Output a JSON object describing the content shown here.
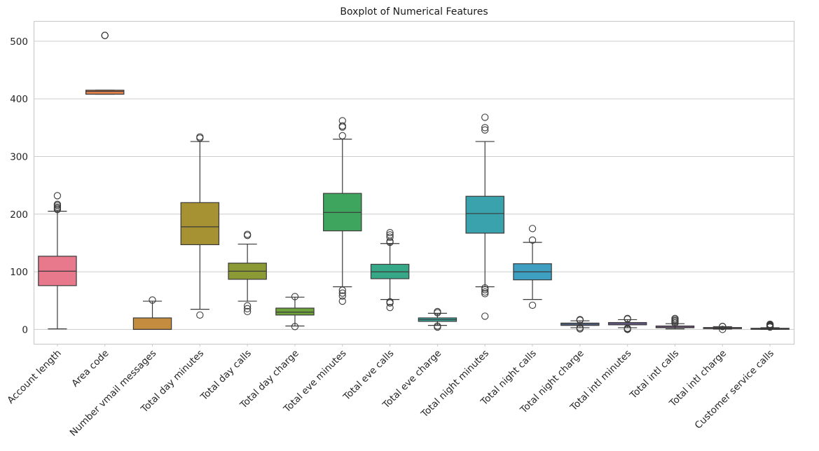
{
  "chart_data": {
    "type": "box",
    "title": "Boxplot of Numerical Features",
    "xlabel": "",
    "ylabel": "",
    "ylim": [
      -25,
      535
    ],
    "yticks": [
      0,
      100,
      200,
      300,
      400,
      500
    ],
    "grid": "horizontal",
    "categories": [
      "Account length",
      "Area code",
      "Number vmail messages",
      "Total day minutes",
      "Total day calls",
      "Total day charge",
      "Total eve minutes",
      "Total eve calls",
      "Total eve charge",
      "Total night minutes",
      "Total night calls",
      "Total night charge",
      "Total intl minutes",
      "Total intl calls",
      "Total intl charge",
      "Customer service calls"
    ],
    "colors": [
      "#e8788c",
      "#dd7f4b",
      "#c38c3e",
      "#a69233",
      "#8b9a35",
      "#6ea23b",
      "#3ea55e",
      "#37a887",
      "#37a59b",
      "#3aa2ad",
      "#3f9fc1",
      "#6c8fd6",
      "#9a81d9",
      "#c270d7",
      "#d56bbb",
      "#e0739d"
    ],
    "boxes": [
      {
        "q1": 76,
        "median": 101,
        "q3": 127,
        "whislo": 1,
        "whishi": 205,
        "fliers": [
          208,
          210,
          212,
          215,
          217,
          232
        ]
      },
      {
        "q1": 408,
        "median": 413,
        "q3": 415,
        "whislo": 408,
        "whishi": 415,
        "fliers": [
          510,
          510,
          510
        ]
      },
      {
        "q1": 0,
        "median": 0,
        "q3": 20,
        "whislo": 0,
        "whishi": 49,
        "fliers": [
          51
        ]
      },
      {
        "q1": 147,
        "median": 178,
        "q3": 220,
        "whislo": 35,
        "whishi": 326,
        "fliers": [
          25,
          332,
          334
        ]
      },
      {
        "q1": 87,
        "median": 101,
        "q3": 115,
        "whislo": 49,
        "whishi": 148,
        "fliers": [
          31,
          36,
          41,
          163,
          165
        ]
      },
      {
        "q1": 25,
        "median": 30,
        "q3": 37,
        "whislo": 6,
        "whishi": 56,
        "fliers": [
          5,
          57
        ]
      },
      {
        "q1": 171,
        "median": 203,
        "q3": 236,
        "whislo": 74,
        "whishi": 330,
        "fliers": [
          49,
          58,
          63,
          68,
          336,
          351,
          353,
          362
        ]
      },
      {
        "q1": 88,
        "median": 100,
        "q3": 113,
        "whislo": 52,
        "whishi": 149,
        "fliers": [
          38,
          46,
          48,
          151,
          153,
          160,
          164,
          168
        ]
      },
      {
        "q1": 14,
        "median": 17,
        "q3": 20,
        "whislo": 7,
        "whishi": 28,
        "fliers": [
          4,
          6,
          29,
          31
        ]
      },
      {
        "q1": 167,
        "median": 201,
        "q3": 231,
        "whislo": 74,
        "whishi": 326,
        "fliers": [
          23,
          62,
          65,
          69,
          72,
          346,
          350,
          368
        ]
      },
      {
        "q1": 86,
        "median": 100,
        "q3": 114,
        "whislo": 52,
        "whishi": 151,
        "fliers": [
          42,
          155,
          175
        ]
      },
      {
        "q1": 7,
        "median": 9,
        "q3": 11,
        "whislo": 3,
        "whishi": 15,
        "fliers": [
          1,
          3,
          16,
          17
        ]
      },
      {
        "q1": 8,
        "median": 10,
        "q3": 12,
        "whislo": 3,
        "whishi": 17,
        "fliers": [
          0,
          1,
          2,
          18,
          19
        ]
      },
      {
        "q1": 3,
        "median": 4,
        "q3": 6,
        "whislo": 1,
        "whishi": 10,
        "fliers": [
          11,
          13,
          15,
          17,
          19
        ]
      },
      {
        "q1": 2.3,
        "median": 2.8,
        "q3": 3.3,
        "whislo": 0.7,
        "whishi": 4.8,
        "fliers": [
          0,
          5,
          5.4
        ]
      },
      {
        "q1": 1,
        "median": 1,
        "q3": 2,
        "whislo": 0,
        "whishi": 3,
        "fliers": [
          4,
          5,
          6,
          7,
          8,
          9
        ]
      }
    ]
  }
}
